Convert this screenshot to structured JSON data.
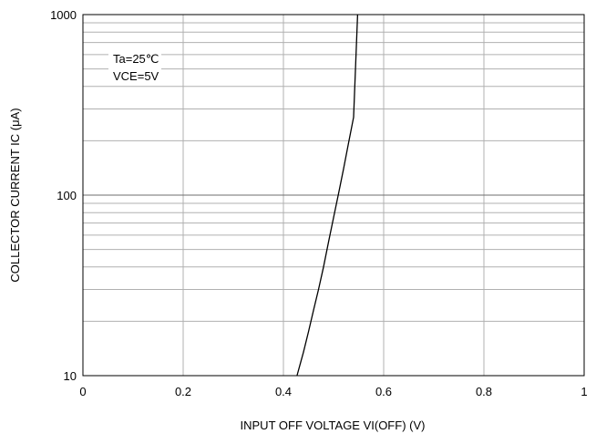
{
  "chart_data": {
    "type": "line",
    "title": "",
    "xlabel": "INPUT OFF VOLTAGE VI(OFF) (V)",
    "ylabel": "COLLECTOR CURRENT  IC (μA)",
    "xlim": [
      0,
      1
    ],
    "ylim": [
      10,
      1000
    ],
    "y_scale": "log",
    "grid": true,
    "x_ticks": [
      0,
      0.2,
      0.4,
      0.6,
      0.8,
      1
    ],
    "x_tick_labels": [
      "0",
      "0.2",
      "0.4",
      "0.6",
      "0.8",
      "1"
    ],
    "y_ticks": [
      10,
      100,
      1000
    ],
    "y_tick_labels": [
      "10",
      "100",
      "1000"
    ],
    "annotations": [
      "Ta=25℃",
      "VCE=5V"
    ],
    "series": [
      {
        "x": [
          0.427,
          0.44,
          0.45,
          0.46,
          0.47,
          0.48,
          0.49,
          0.5,
          0.51,
          0.52,
          0.53,
          0.54,
          0.548
        ],
        "y": [
          10,
          13.5,
          17.5,
          23,
          30,
          40,
          55,
          75,
          102,
          140,
          195,
          270,
          1000
        ],
        "color": "#000000"
      }
    ]
  }
}
